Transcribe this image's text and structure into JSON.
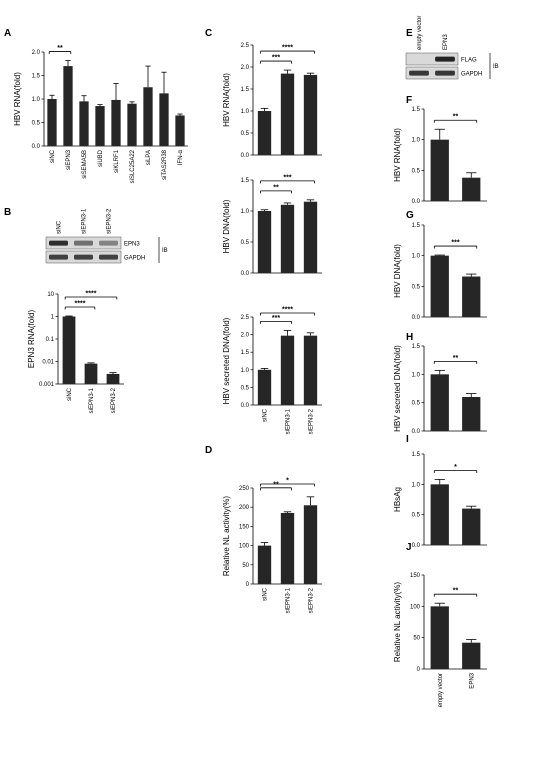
{
  "chart_data": [
    {
      "panel": "A",
      "type": "bar",
      "ylabel": "HBV  RNA(fold)",
      "categories": [
        "siNC",
        "siEPN3",
        "siSEMA5B",
        "siUBD",
        "siKLRF1",
        "siSLC25A22",
        "siLPA",
        "siTAS2R38",
        "IFN-α"
      ],
      "values": [
        1.0,
        1.7,
        0.95,
        0.85,
        0.98,
        0.9,
        1.25,
        1.12,
        0.65
      ],
      "errors": [
        0.08,
        0.12,
        0.12,
        0.03,
        0.35,
        0.04,
        0.45,
        0.45,
        0.03
      ],
      "ylim": [
        0,
        2.0
      ],
      "yticks": [
        "0.0",
        "0.5",
        "1.0",
        "1.5",
        "2.0"
      ],
      "significance": [
        {
          "from": 0,
          "to": 1,
          "label": "**"
        }
      ]
    },
    {
      "panel": "B",
      "type": "bar",
      "scale": "log",
      "ylabel": "EPN3  RNA(fold)",
      "categories": [
        "siNC",
        "siEPN3-1",
        "siEPN3-2"
      ],
      "values": [
        1.0,
        0.008,
        0.0028
      ],
      "errors": [
        0.05,
        0.0007,
        0.0004
      ],
      "ylim": [
        0.001,
        10
      ],
      "yticks": [
        "0.001",
        "0.01",
        "0.1",
        "1",
        "10"
      ],
      "significance": [
        {
          "from": 0,
          "to": 1,
          "label": "****"
        },
        {
          "from": 0,
          "to": 2,
          "label": "****"
        }
      ]
    },
    {
      "panel": "C1",
      "type": "bar",
      "ylabel": "HBV  RNA(fold)",
      "categories": [
        "siNC",
        "siEPN3-1",
        "siEPN3-2"
      ],
      "values": [
        1.0,
        1.85,
        1.82
      ],
      "errors": [
        0.06,
        0.08,
        0.04
      ],
      "ylim": [
        0,
        2.5
      ],
      "yticks": [
        "0.0",
        "0.5",
        "1.0",
        "1.5",
        "2.0",
        "2.5"
      ],
      "significance": [
        {
          "from": 0,
          "to": 1,
          "label": "***"
        },
        {
          "from": 0,
          "to": 2,
          "label": "****"
        }
      ]
    },
    {
      "panel": "C2",
      "type": "bar",
      "ylabel": "HBV  DNA(fold)",
      "categories": [
        "siNC",
        "siEPN3-1",
        "siEPN3-2"
      ],
      "values": [
        1.0,
        1.1,
        1.15
      ],
      "errors": [
        0.02,
        0.03,
        0.03
      ],
      "ylim": [
        0,
        1.5
      ],
      "yticks": [
        "0.0",
        "0.5",
        "1.0",
        "1.5"
      ],
      "significance": [
        {
          "from": 0,
          "to": 1,
          "label": "**"
        },
        {
          "from": 0,
          "to": 2,
          "label": "***"
        }
      ]
    },
    {
      "panel": "C3",
      "type": "bar",
      "ylabel": "HBV secreted DNA(fold)",
      "categories": [
        "siNC",
        "siEPN3-1",
        "siEPN3-2"
      ],
      "values": [
        1.0,
        1.97,
        1.97
      ],
      "errors": [
        0.04,
        0.15,
        0.08
      ],
      "ylim": [
        0,
        2.5
      ],
      "yticks": [
        "0.0",
        "0.5",
        "1.0",
        "1.5",
        "2.0",
        "2.5"
      ],
      "significance": [
        {
          "from": 0,
          "to": 1,
          "label": "***"
        },
        {
          "from": 0,
          "to": 2,
          "label": "****"
        }
      ]
    },
    {
      "panel": "D",
      "type": "bar",
      "ylabel": "Relative  NL  activity(%)",
      "categories": [
        "siNC",
        "siEPN3-1",
        "siEPN3-2"
      ],
      "values": [
        100,
        185,
        205
      ],
      "errors": [
        8,
        3,
        22
      ],
      "ylim": [
        0,
        250
      ],
      "yticks": [
        "0",
        "50",
        "100",
        "150",
        "200",
        "250"
      ],
      "significance": [
        {
          "from": 0,
          "to": 1,
          "label": "**"
        },
        {
          "from": 0,
          "to": 2,
          "label": "*"
        }
      ]
    },
    {
      "panel": "F",
      "type": "bar",
      "ylabel": "HBV  RNA(fold)",
      "categories": [
        "empty vector",
        "EPN3"
      ],
      "values": [
        1.0,
        0.38
      ],
      "errors": [
        0.17,
        0.08
      ],
      "ylim": [
        0,
        1.5
      ],
      "yticks": [
        "0.0",
        "0.5",
        "1.0",
        "1.5"
      ],
      "significance": [
        {
          "from": 0,
          "to": 1,
          "label": "**"
        }
      ]
    },
    {
      "panel": "G",
      "type": "bar",
      "ylabel": "HBV  DNA(fold)",
      "categories": [
        "empty vector",
        "EPN3"
      ],
      "values": [
        1.0,
        0.66
      ],
      "errors": [
        0.01,
        0.04
      ],
      "ylim": [
        0,
        1.5
      ],
      "yticks": [
        "0.0",
        "0.5",
        "1.0",
        "1.5"
      ],
      "significance": [
        {
          "from": 0,
          "to": 1,
          "label": "***"
        }
      ]
    },
    {
      "panel": "H",
      "type": "bar",
      "ylabel": "HBV secreted DNA(fold)",
      "categories": [
        "empty vector",
        "EPN3"
      ],
      "values": [
        1.0,
        0.6
      ],
      "errors": [
        0.07,
        0.06
      ],
      "ylim": [
        0,
        1.5
      ],
      "yticks": [
        "0.0",
        "0.5",
        "1.0",
        "1.5"
      ],
      "significance": [
        {
          "from": 0,
          "to": 1,
          "label": "**"
        }
      ]
    },
    {
      "panel": "I",
      "type": "bar",
      "ylabel": "HBsAg",
      "categories": [
        "empty vector",
        "EPN3"
      ],
      "values": [
        1.0,
        0.6
      ],
      "errors": [
        0.08,
        0.04
      ],
      "ylim": [
        0,
        1.5
      ],
      "yticks": [
        "0.0",
        "0.5",
        "1.0",
        "1.5"
      ],
      "significance": [
        {
          "from": 0,
          "to": 1,
          "label": "*"
        }
      ]
    },
    {
      "panel": "J",
      "type": "bar",
      "ylabel": "Relative  NL  activity(%)",
      "categories": [
        "empty vector",
        "EPN3"
      ],
      "values": [
        100,
        42
      ],
      "errors": [
        5,
        5
      ],
      "ylim": [
        0,
        150
      ],
      "yticks": [
        "0",
        "50",
        "100",
        "150"
      ],
      "significance": [
        {
          "from": 0,
          "to": 1,
          "label": "**"
        }
      ]
    }
  ],
  "blots": {
    "B": {
      "lanes": [
        "siNC",
        "siEPN3-1",
        "siEPN3-2"
      ],
      "bands": [
        "EPN3",
        "GAPDH"
      ],
      "method": "IB"
    },
    "E": {
      "lanes": [
        "empty vector",
        "EPN3"
      ],
      "bands": [
        "FLAG",
        "GAPDH"
      ],
      "method": "IB"
    }
  },
  "panel_labels": [
    "A",
    "B",
    "C",
    "D",
    "E",
    "F",
    "G",
    "H",
    "I",
    "J"
  ],
  "colors": {
    "bar": "#262626",
    "background": "#ffffff",
    "blot_band": "#1a1a1a",
    "blot_bg": "#d9d9d9"
  }
}
